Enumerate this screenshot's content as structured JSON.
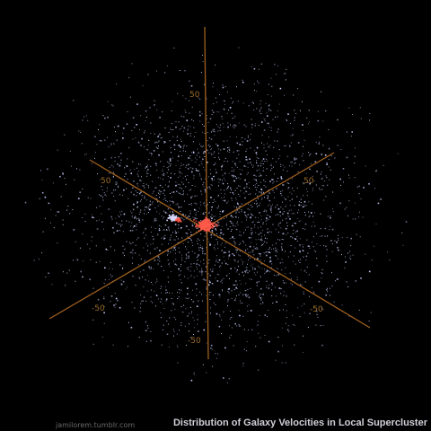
{
  "chart_data": {
    "type": "scatter",
    "dimensions": 3,
    "title": "Distribution of Galaxy Velocities in Local Supercluster",
    "credit": "jamilorem.tumblr.com",
    "axes": [
      {
        "name": "x",
        "tick_labels": [
          "50",
          "-50"
        ]
      },
      {
        "name": "y",
        "tick_labels": [
          "50",
          "-50"
        ]
      },
      {
        "name": "z",
        "tick_labels": [
          "50",
          "-50"
        ]
      }
    ],
    "series": [
      {
        "color": "#c8cfff",
        "values": []
      },
      {
        "color": "#ff5a4a",
        "values": []
      }
    ],
    "grid": false,
    "legend": "none",
    "colors": {
      "background": "#000000",
      "axis": "#a0601e",
      "tick_label": "#9a6a2a",
      "caption": "#cfcfd8"
    }
  }
}
